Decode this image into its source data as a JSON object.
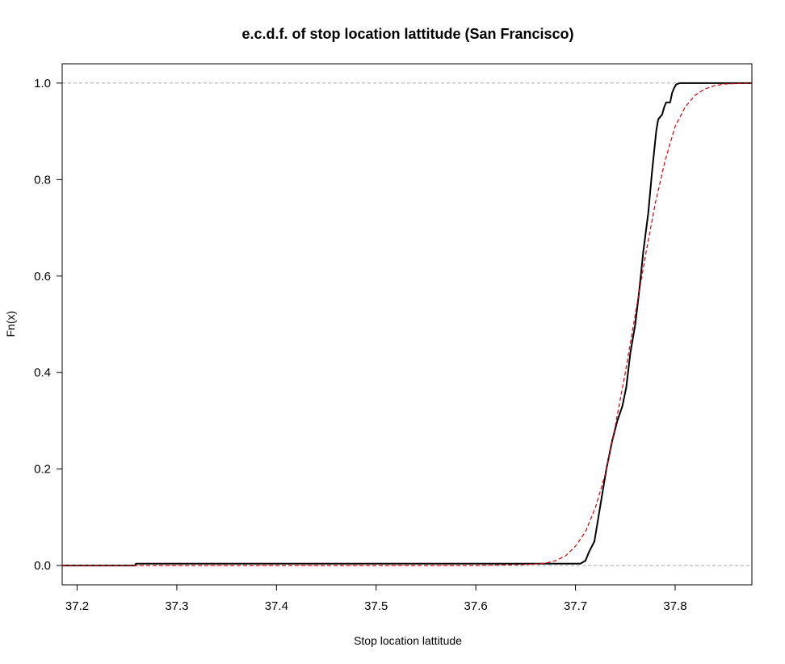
{
  "chart_data": {
    "type": "line",
    "title": "e.c.d.f. of stop location lattitude  (San Francisco)",
    "xlabel": "Stop location lattitude",
    "ylabel": "Fn(x)",
    "xlim": [
      37.185,
      37.877
    ],
    "ylim": [
      -0.04,
      1.04
    ],
    "xticks": [
      "37.2",
      "37.3",
      "37.4",
      "37.5",
      "37.6",
      "37.7",
      "37.8"
    ],
    "yticks": [
      "0.0",
      "0.2",
      "0.4",
      "0.6",
      "0.8",
      "1.0"
    ],
    "reference_lines_y": [
      0.0,
      1.0
    ],
    "series": [
      {
        "color": "#000000",
        "style": "solid step",
        "x": [
          37.185,
          37.258,
          37.259,
          37.705,
          37.71,
          37.714,
          37.719,
          37.723,
          37.727,
          37.731,
          37.737,
          37.742,
          37.747,
          37.751,
          37.755,
          37.76,
          37.764,
          37.768,
          37.773,
          37.777,
          37.781,
          37.783,
          37.785,
          37.787,
          37.789,
          37.791,
          37.795,
          37.797,
          37.799,
          37.801,
          37.803,
          37.805,
          37.807,
          37.809,
          37.812,
          37.816,
          37.877
        ],
        "y": [
          0.0,
          0.0,
          0.004,
          0.004,
          0.01,
          0.03,
          0.05,
          0.1,
          0.15,
          0.2,
          0.26,
          0.3,
          0.33,
          0.37,
          0.44,
          0.5,
          0.57,
          0.65,
          0.73,
          0.82,
          0.9,
          0.925,
          0.93,
          0.935,
          0.95,
          0.96,
          0.96,
          0.98,
          0.99,
          0.997,
          0.999,
          1.0,
          1.0,
          1.0,
          1.0,
          1.0,
          1.0
        ]
      },
      {
        "color": "#dd0000",
        "style": "dashed",
        "x": [
          37.185,
          37.6,
          37.65,
          37.67,
          37.68,
          37.69,
          37.7,
          37.71,
          37.72,
          37.73,
          37.74,
          37.75,
          37.76,
          37.77,
          37.78,
          37.79,
          37.8,
          37.81,
          37.82,
          37.83,
          37.84,
          37.85,
          37.86,
          37.877
        ],
        "y": [
          0.0,
          0.0,
          0.002,
          0.005,
          0.01,
          0.02,
          0.04,
          0.07,
          0.12,
          0.19,
          0.29,
          0.4,
          0.52,
          0.64,
          0.75,
          0.84,
          0.91,
          0.95,
          0.975,
          0.988,
          0.995,
          0.998,
          0.999,
          1.0
        ]
      }
    ]
  }
}
